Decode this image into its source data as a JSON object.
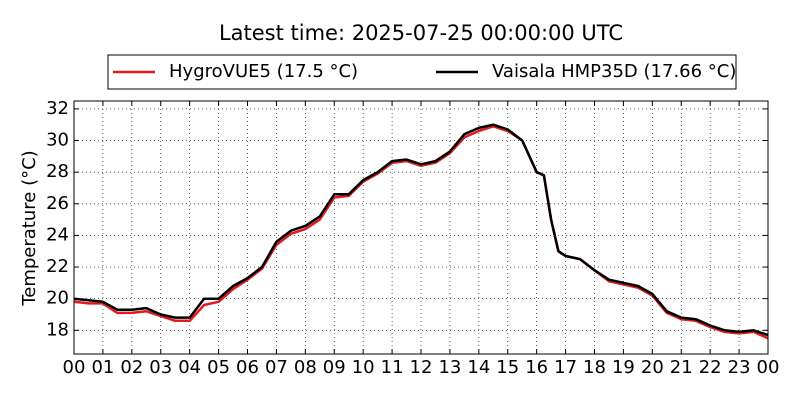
{
  "chart_data": {
    "type": "line",
    "title": "Latest time: 2025-07-25 00:00:00 UTC",
    "ylabel": "Temperature (°C)",
    "x": [
      0,
      0.5,
      1,
      1.5,
      2,
      2.5,
      3,
      3.5,
      4,
      4.5,
      5,
      5.5,
      6,
      6.5,
      7,
      7.5,
      8,
      8.5,
      9,
      9.5,
      10,
      10.5,
      11,
      11.5,
      12,
      12.5,
      13,
      13.5,
      14,
      14.5,
      15,
      15.5,
      16,
      16.25,
      16.5,
      16.75,
      17,
      17.5,
      18,
      18.5,
      19,
      19.5,
      20,
      20.5,
      21,
      21.5,
      22,
      22.5,
      23,
      23.5,
      24
    ],
    "series": [
      {
        "name": "HygroVUE5 (17.5 °C)",
        "color": "#e31a1c",
        "values": [
          19.8,
          19.7,
          19.7,
          19.1,
          19.1,
          19.2,
          18.9,
          18.6,
          18.6,
          19.6,
          19.8,
          20.6,
          21.2,
          21.9,
          23.4,
          24.1,
          24.4,
          25.0,
          26.4,
          26.5,
          27.4,
          27.9,
          28.6,
          28.7,
          28.4,
          28.6,
          29.2,
          30.2,
          30.6,
          30.9,
          30.6,
          30.0,
          28.0,
          27.8,
          25.0,
          23.0,
          22.7,
          22.5,
          21.8,
          21.1,
          20.9,
          20.7,
          20.2,
          19.1,
          18.7,
          18.6,
          18.2,
          17.9,
          17.8,
          17.9,
          17.5
        ]
      },
      {
        "name": "Vaisala HMP35D (17.66 °C)",
        "color": "#000000",
        "values": [
          20.0,
          19.9,
          19.8,
          19.3,
          19.3,
          19.4,
          19.0,
          18.8,
          18.8,
          20.0,
          20.0,
          20.8,
          21.3,
          22.0,
          23.6,
          24.3,
          24.6,
          25.2,
          26.6,
          26.6,
          27.5,
          28.0,
          28.7,
          28.8,
          28.5,
          28.7,
          29.3,
          30.4,
          30.8,
          31.0,
          30.7,
          30.0,
          28.0,
          27.8,
          25.0,
          23.0,
          22.7,
          22.5,
          21.8,
          21.2,
          21.0,
          20.8,
          20.3,
          19.2,
          18.8,
          18.7,
          18.3,
          18.0,
          17.9,
          18.0,
          17.7
        ]
      }
    ],
    "xlim": [
      0,
      24
    ],
    "xticks": [
      {
        "value": 0,
        "label": "00"
      },
      {
        "value": 1,
        "label": "01"
      },
      {
        "value": 2,
        "label": "02"
      },
      {
        "value": 3,
        "label": "03"
      },
      {
        "value": 4,
        "label": "04"
      },
      {
        "value": 5,
        "label": "05"
      },
      {
        "value": 6,
        "label": "06"
      },
      {
        "value": 7,
        "label": "07"
      },
      {
        "value": 8,
        "label": "08"
      },
      {
        "value": 9,
        "label": "09"
      },
      {
        "value": 10,
        "label": "10"
      },
      {
        "value": 11,
        "label": "11"
      },
      {
        "value": 12,
        "label": "12"
      },
      {
        "value": 13,
        "label": "13"
      },
      {
        "value": 14,
        "label": "14"
      },
      {
        "value": 15,
        "label": "15"
      },
      {
        "value": 16,
        "label": "16"
      },
      {
        "value": 17,
        "label": "17"
      },
      {
        "value": 18,
        "label": "18"
      },
      {
        "value": 19,
        "label": "19"
      },
      {
        "value": 20,
        "label": "20"
      },
      {
        "value": 21,
        "label": "21"
      },
      {
        "value": 22,
        "label": "22"
      },
      {
        "value": 23,
        "label": "23"
      },
      {
        "value": 24,
        "label": "00"
      }
    ],
    "ylim": [
      16.5,
      32.5
    ],
    "yticks": [
      18,
      20,
      22,
      24,
      26,
      28,
      30,
      32
    ],
    "grid": true,
    "legend": "top"
  }
}
